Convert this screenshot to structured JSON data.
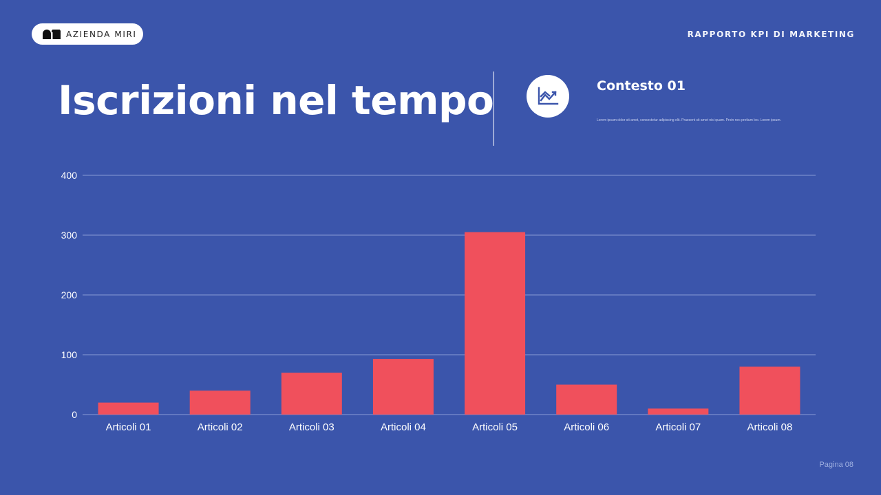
{
  "brand": {
    "name": "AZIENDA MIRI",
    "logo_icon": "brand-logo-icon"
  },
  "header": {
    "report_title": "RAPPORTO KPI DI MARKETING"
  },
  "page": {
    "title": "Iscrizioni nel tempo",
    "number": "Pagina 08"
  },
  "context": {
    "icon": "line-chart-icon",
    "title": "Contesto 01",
    "description": "Lorem ipsum dolor sit amet, consectetur adipiscing elit. Praesent sit amet nisi quam. Proin nec pretium leo. Lorem ipsum."
  },
  "colors": {
    "background": "#3b55ab",
    "bar": "#f0505c",
    "gridline": "#8a9bd4",
    "text": "#ffffff"
  },
  "chart_data": {
    "type": "bar",
    "title": "Iscrizioni nel tempo",
    "xlabel": "",
    "ylabel": "",
    "categories": [
      "Articoli 01",
      "Articoli 02",
      "Articoli 03",
      "Articoli 04",
      "Articoli 05",
      "Articoli 06",
      "Articoli 07",
      "Articoli 08"
    ],
    "values": [
      20,
      40,
      70,
      93,
      305,
      50,
      10,
      80
    ],
    "ylim": [
      0,
      400
    ],
    "yticks": [
      0,
      100,
      200,
      300,
      400
    ],
    "grid": true,
    "legend": "none"
  }
}
